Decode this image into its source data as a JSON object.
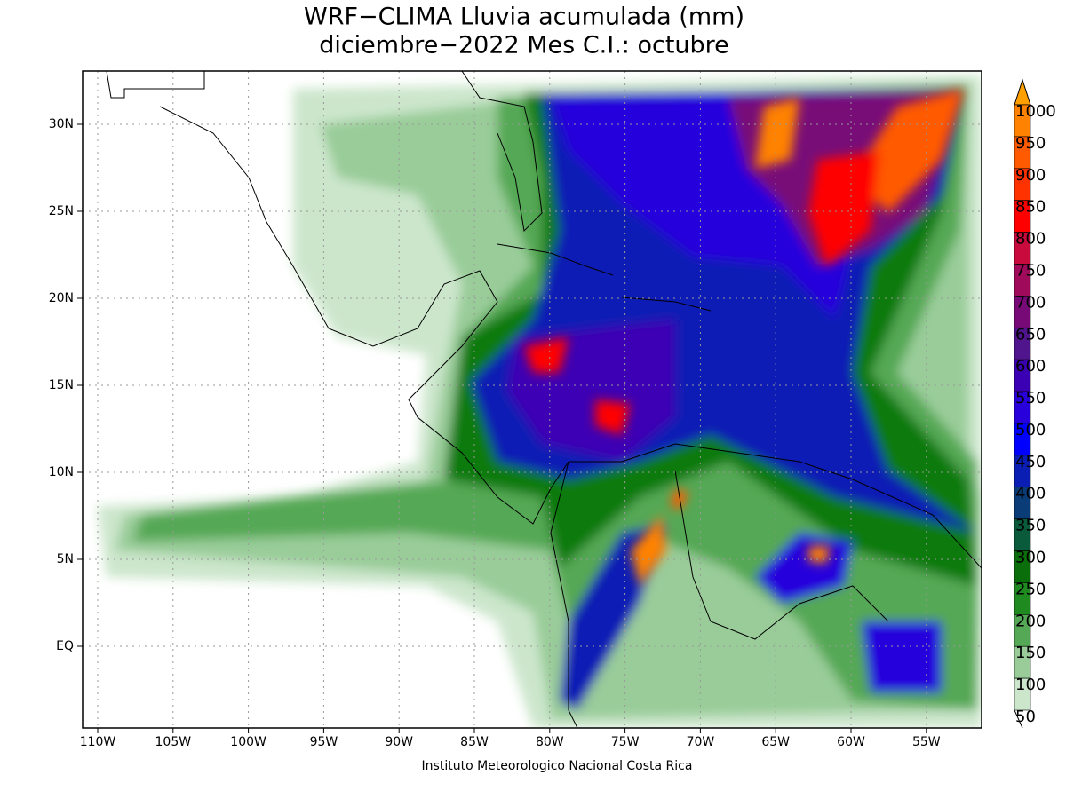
{
  "title": "WRF−CLIMA Lluvia acumulada (mm)",
  "subtitle": "diciembre−2022 Mes C.I.: octubre",
  "lon_labels": [
    "110W",
    "105W",
    "100W",
    "95W",
    "90W",
    "85W",
    "80W",
    "75W",
    "70W",
    "65W",
    "60W",
    "55W"
  ],
  "lat_labels": [
    "30N",
    "25N",
    "20N",
    "15N",
    "10N",
    "5N",
    "EQ"
  ],
  "colorbar_labels": [
    "1000",
    "950",
    "900",
    "850",
    "800",
    "750",
    "700",
    "650",
    "600",
    "550",
    "500",
    "450",
    "400",
    "350",
    "300",
    "250",
    "200",
    "150",
    "100",
    "50"
  ],
  "footer": "Instituto Meteorologico Nacional Costa Rica"
}
